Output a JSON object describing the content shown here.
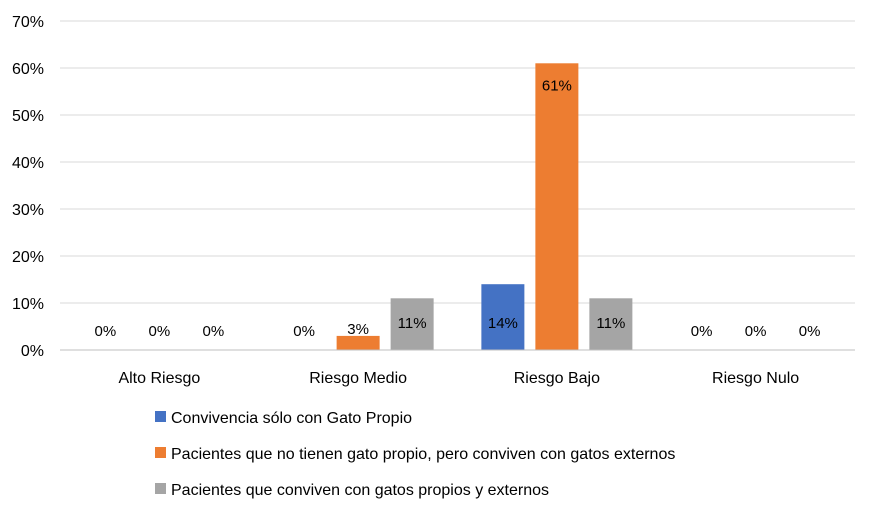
{
  "chart_data": {
    "type": "bar",
    "categories": [
      "Alto Riesgo",
      "Riesgo Medio",
      "Riesgo Bajo",
      "Riesgo Nulo"
    ],
    "series": [
      {
        "name": "Convivencia sólo con Gato Propio",
        "values": [
          0,
          0,
          14,
          0
        ],
        "color": "#4472C4",
        "labels": [
          "0%",
          "0%",
          "14%",
          "0%"
        ]
      },
      {
        "name": "Pacientes que no tienen gato propio, pero conviven con gatos externos",
        "values": [
          0,
          3,
          61,
          0
        ],
        "color": "#ED7D31",
        "labels": [
          "0%",
          "3%",
          "61%",
          "0%"
        ]
      },
      {
        "name": "Pacientes que conviven con gatos propios y externos",
        "values": [
          0,
          11,
          11,
          0
        ],
        "color": "#A5A5A5",
        "labels": [
          "0%",
          "11%",
          "11%",
          "0%"
        ]
      }
    ],
    "ylim": [
      0,
      70
    ],
    "yticks": [
      "0%",
      "10%",
      "20%",
      "30%",
      "40%",
      "50%",
      "60%",
      "70%"
    ],
    "grid": true,
    "legend": "bottom",
    "title": "",
    "xlabel": "",
    "ylabel": ""
  }
}
